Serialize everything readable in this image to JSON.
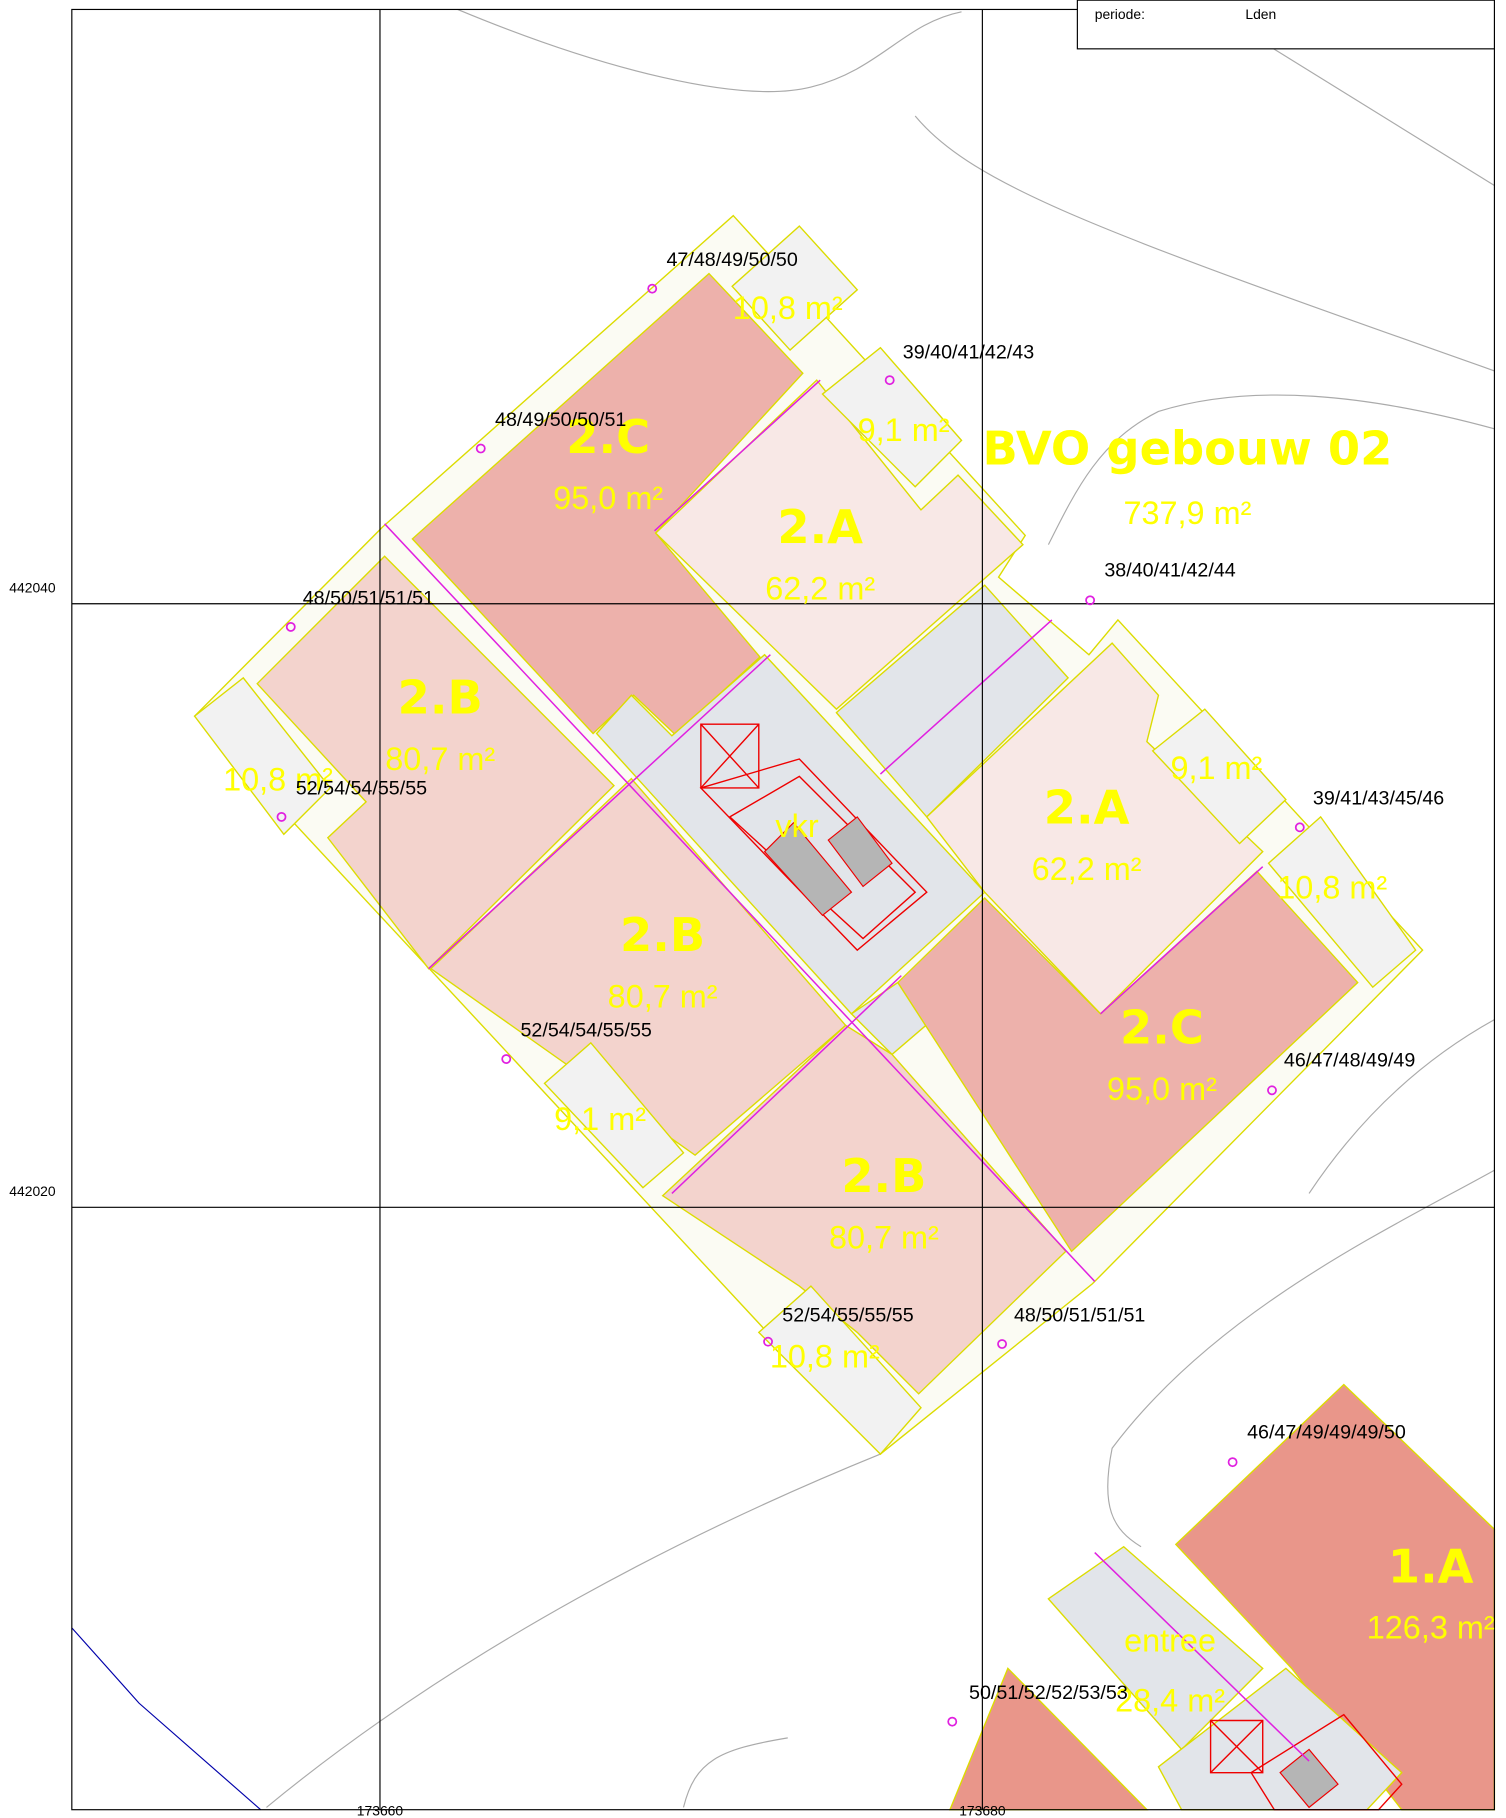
{
  "legend": {
    "period_label": "periode:",
    "period_value": "Lden"
  },
  "axes": {
    "y_labels": [
      "442040",
      "442020"
    ],
    "x_labels": [
      "173660",
      "173680"
    ]
  },
  "building": {
    "name": "BVO gebouw 02",
    "area": "737,9 m²"
  },
  "units": [
    {
      "code": "2.C",
      "area": "95,0 m²"
    },
    {
      "code": "2.A",
      "area": "62,2 m²"
    },
    {
      "code": "2.B",
      "area": "80,7 m²"
    },
    {
      "code": "2.A",
      "area": "62,2 m²"
    },
    {
      "code": "2.B",
      "area": "80,7 m²"
    },
    {
      "code": "2.C",
      "area": "95,0 m²"
    },
    {
      "code": "2.B",
      "area": "80,7 m²"
    },
    {
      "code": "1.A",
      "area": "126,3 m²"
    },
    {
      "code": "entree",
      "area": "28,4 m²"
    },
    {
      "code": "vkr"
    }
  ],
  "outdoor_areas": [
    "10,8 m²",
    "9,1 m²",
    "10,8 m²",
    "9,1 m²",
    "10,8 m²",
    "9,1 m²",
    "10,8 m²"
  ],
  "receivers": [
    "47/48/49/50/50",
    "39/40/41/42/43",
    "48/49/50/50/51",
    "38/40/41/42/44",
    "48/50/51/51/51",
    "52/54/54/55/55",
    "39/41/43/45/46",
    "52/54/54/55/55",
    "46/47/48/49/49",
    "52/54/55/55/55",
    "48/50/51/51/51",
    "46/47/49/49/49/50",
    "50/51/52/52/53/53"
  ]
}
